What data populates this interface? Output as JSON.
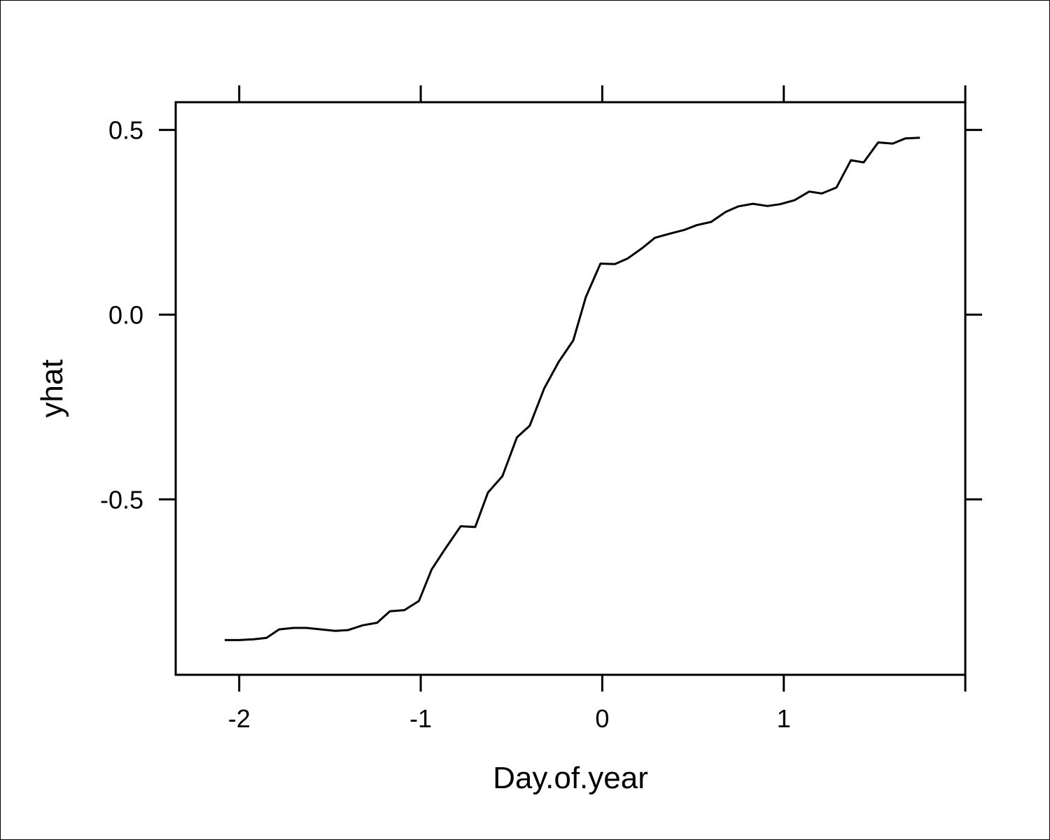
{
  "chart_data": {
    "type": "line",
    "title": "",
    "xlabel": "Day.of.year",
    "ylabel": "yhat",
    "xlim": [
      -2.35,
      2.0
    ],
    "ylim": [
      -0.975,
      0.575
    ],
    "x_ticks": [
      -2,
      -1,
      0,
      1
    ],
    "x_tick_labels": [
      "-2",
      "-1",
      "0",
      "1"
    ],
    "y_ticks": [
      -0.5,
      0.0,
      0.5
    ],
    "y_tick_labels": [
      "-0.5",
      "0.0",
      "0.5"
    ],
    "grid": false,
    "line_color": "#000000",
    "series": [
      {
        "x": [
          -2.08,
          -2.0,
          -1.92,
          -1.85,
          -1.78,
          -1.7,
          -1.63,
          -1.55,
          -1.47,
          -1.4,
          -1.32,
          -1.24,
          -1.17,
          -1.09,
          -1.01,
          -0.94,
          -0.86,
          -0.78,
          -0.7,
          -0.63,
          -0.55,
          -0.47,
          -0.4,
          -0.32,
          -0.24,
          -0.16,
          -0.09,
          -0.01,
          0.07,
          0.14,
          0.22,
          0.29,
          0.37,
          0.45,
          0.52,
          0.6,
          0.68,
          0.75,
          0.83,
          0.91,
          0.98,
          1.06,
          1.14,
          1.21,
          1.29,
          1.37,
          1.44,
          1.52,
          1.6,
          1.67,
          1.75
        ],
        "y": [
          -0.881,
          -0.881,
          -0.879,
          -0.875,
          -0.852,
          -0.848,
          -0.848,
          -0.852,
          -0.856,
          -0.854,
          -0.841,
          -0.834,
          -0.803,
          -0.8,
          -0.775,
          -0.69,
          -0.63,
          -0.573,
          -0.575,
          -0.482,
          -0.437,
          -0.332,
          -0.301,
          -0.2,
          -0.128,
          -0.07,
          0.048,
          0.138,
          0.137,
          0.152,
          0.18,
          0.208,
          0.219,
          0.229,
          0.242,
          0.251,
          0.278,
          0.293,
          0.3,
          0.294,
          0.299,
          0.31,
          0.333,
          0.328,
          0.344,
          0.418,
          0.412,
          0.466,
          0.463,
          0.477,
          0.479
        ]
      }
    ]
  }
}
